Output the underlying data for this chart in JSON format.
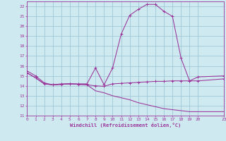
{
  "background_color": "#cfe9f0",
  "grid_color": "#a0c8d8",
  "line_color": "#993399",
  "xlabel": "Windchill (Refroidissement éolien,°C)",
  "xlim": [
    0,
    23
  ],
  "ylim": [
    11,
    22.5
  ],
  "xticks": [
    0,
    1,
    2,
    3,
    4,
    5,
    6,
    7,
    8,
    9,
    10,
    11,
    12,
    13,
    14,
    15,
    16,
    17,
    18,
    19,
    20,
    23
  ],
  "yticks": [
    11,
    12,
    13,
    14,
    15,
    16,
    17,
    18,
    19,
    20,
    21,
    22
  ],
  "line1_x": [
    0,
    1,
    2,
    3,
    4,
    5,
    6,
    7,
    8,
    9,
    10,
    11,
    12,
    13,
    14,
    15,
    16,
    17,
    18,
    19,
    20,
    23
  ],
  "line1_y": [
    15.5,
    15.0,
    14.3,
    14.1,
    14.2,
    14.2,
    14.2,
    14.2,
    15.8,
    14.1,
    15.8,
    19.2,
    21.1,
    21.7,
    22.2,
    22.2,
    21.5,
    21.0,
    16.8,
    14.5,
    14.9,
    15.0
  ],
  "line2_x": [
    0,
    1,
    2,
    3,
    4,
    5,
    6,
    7,
    8,
    9,
    10,
    11,
    12,
    13,
    14,
    15,
    16,
    17,
    18,
    19,
    20,
    23
  ],
  "line2_y": [
    15.3,
    14.8,
    14.2,
    14.1,
    14.15,
    14.2,
    14.15,
    14.1,
    14.0,
    13.95,
    14.2,
    14.25,
    14.3,
    14.35,
    14.4,
    14.45,
    14.45,
    14.5,
    14.5,
    14.5,
    14.5,
    14.7
  ],
  "line3_x": [
    0,
    1,
    2,
    3,
    4,
    5,
    6,
    7,
    8,
    9,
    10,
    11,
    12,
    13,
    14,
    15,
    16,
    17,
    18,
    19,
    20,
    23
  ],
  "line3_y": [
    15.3,
    14.8,
    14.2,
    14.1,
    14.15,
    14.2,
    14.15,
    14.1,
    13.5,
    13.3,
    13.0,
    12.8,
    12.6,
    12.3,
    12.1,
    11.9,
    11.7,
    11.6,
    11.5,
    11.4,
    11.4,
    11.4
  ]
}
